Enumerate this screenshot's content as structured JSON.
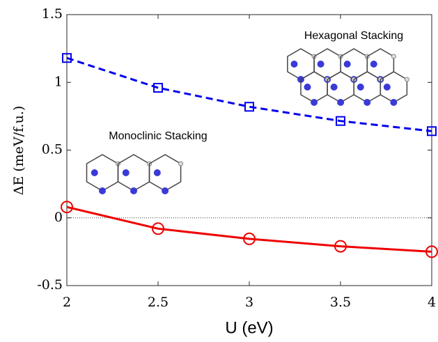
{
  "chart_data": {
    "type": "line",
    "x": [
      2,
      2.5,
      3,
      3.5,
      4
    ],
    "series": [
      {
        "name": "Hexagonal Stacking",
        "color": "#0000ee",
        "dashed": true,
        "marker": "square",
        "values": [
          1.18,
          0.96,
          0.82,
          0.715,
          0.64
        ]
      },
      {
        "name": "Monoclinic Stacking",
        "color": "#ee0000",
        "dashed": false,
        "marker": "circle",
        "values": [
          0.08,
          -0.08,
          -0.155,
          -0.21,
          -0.25
        ]
      }
    ],
    "xlabel": "U (eV)",
    "ylabel": "ΔE (meV/f.u.)",
    "xlim": [
      2,
      4
    ],
    "xticks": [
      2,
      2.5,
      3,
      3.5,
      4
    ],
    "ylim": [
      -0.5,
      1.5
    ],
    "yticks": [
      -0.5,
      0,
      0.5,
      1,
      1.5
    ],
    "zero_line": true
  }
}
